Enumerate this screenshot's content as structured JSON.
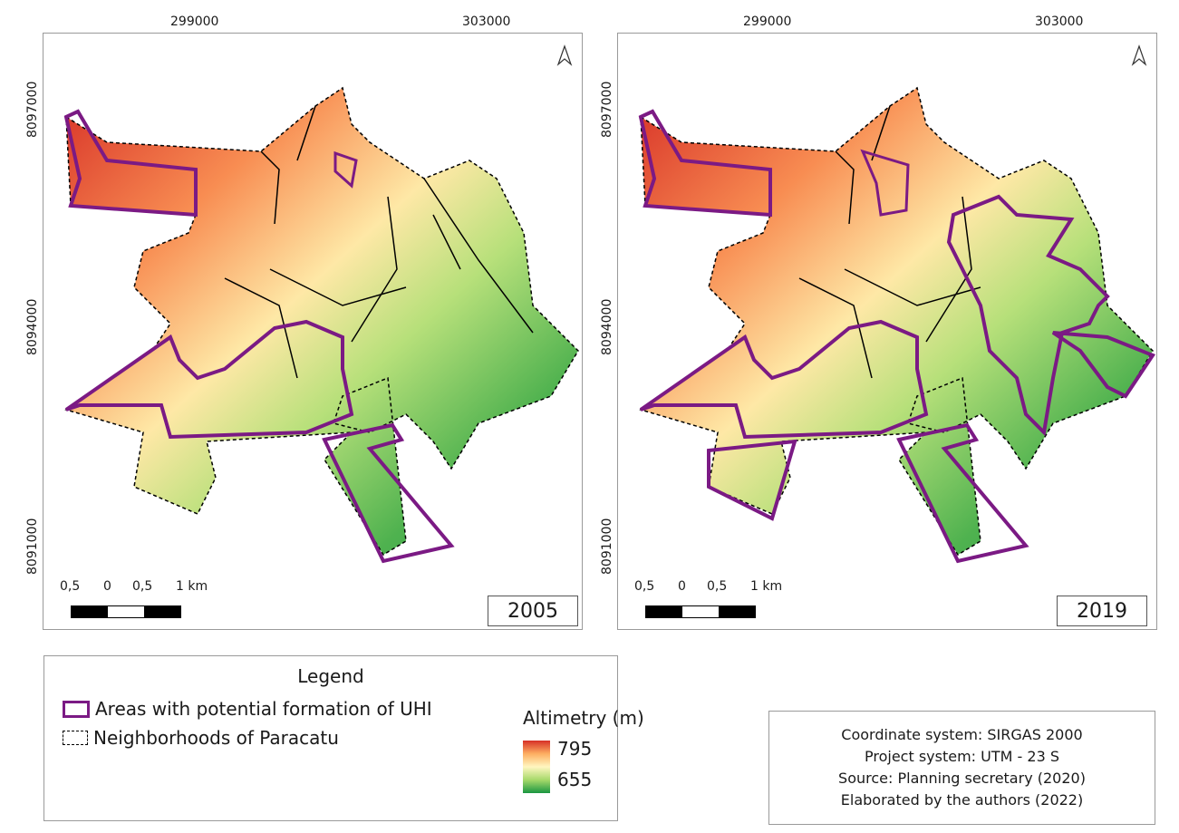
{
  "maps": [
    {
      "year": "2005",
      "x_ticks": [
        "299000",
        "303000"
      ],
      "y_ticks": [
        "8097000",
        "8094000",
        "8091000"
      ]
    },
    {
      "year": "2019",
      "x_ticks": [
        "299000",
        "303000"
      ],
      "y_ticks": [
        "8097000",
        "8094000",
        "8091000"
      ]
    }
  ],
  "scale": {
    "labels": [
      "0,5",
      "0",
      "0,5",
      "1 km"
    ]
  },
  "legend": {
    "title": "Legend",
    "uhi_label": "Areas with potential formation of UHI",
    "neighborhoods_label": "Neighborhoods of Paracatu",
    "altimetry_title": "Altimetry (m)",
    "alt_max": "795",
    "alt_min": "655"
  },
  "info": [
    "Coordinate system: SIRGAS 2000",
    "Project system: UTM - 23 S",
    "Source: Planning secretary (2020)",
    "Elaborated by the authors (2022)"
  ],
  "colors": {
    "uhi": "#7b1a84",
    "high": "#d73027",
    "mid": "#fff6c0",
    "low": "#1a9641"
  }
}
